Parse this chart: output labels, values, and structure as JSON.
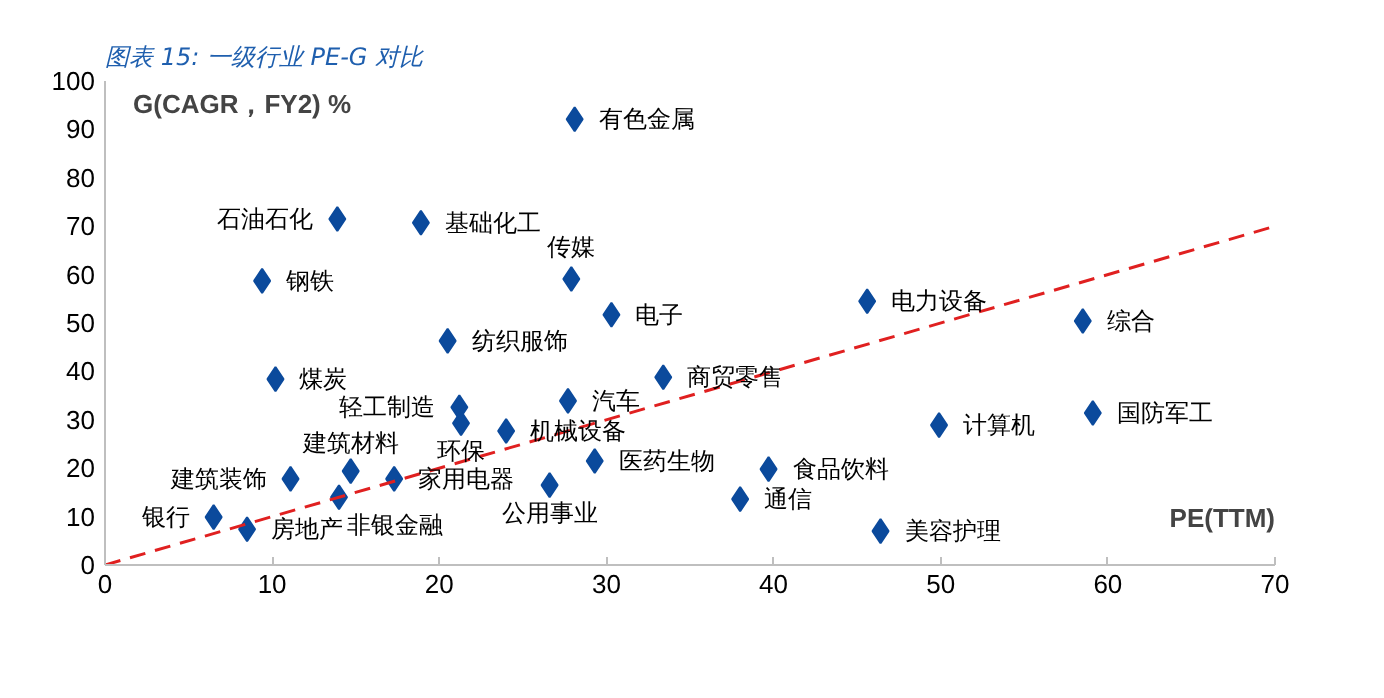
{
  "chart_data": {
    "type": "scatter",
    "title": "图表 15: 一级行业 PE-G 对比",
    "xlabel": "PE(TTM)",
    "ylabel": "G(CAGR，FY2) %",
    "xlim": [
      0,
      70
    ],
    "ylim": [
      0,
      100
    ],
    "xticks": [
      0,
      10,
      20,
      30,
      40,
      50,
      60,
      70
    ],
    "yticks": [
      0,
      10,
      20,
      30,
      40,
      50,
      60,
      70,
      80,
      90,
      100
    ],
    "grid": false,
    "marker": "diamond",
    "series": [
      {
        "type": "scatter",
        "color": "#0b4a9c",
        "x": [
          28.1,
          13.9,
          18.9,
          27.9,
          9.4,
          30.3,
          20.5,
          45.6,
          58.5,
          10.2,
          33.4,
          21.2,
          21.3,
          27.7,
          24.0,
          29.3,
          49.9,
          59.1,
          39.7,
          38.0,
          46.4,
          11.1,
          14.7,
          14.0,
          17.3,
          26.6,
          6.5,
          8.5
        ],
        "values": [
          92.1,
          71.5,
          70.7,
          59.1,
          58.7,
          51.7,
          46.3,
          54.5,
          50.4,
          38.4,
          38.8,
          32.6,
          29.3,
          33.9,
          27.7,
          21.5,
          28.9,
          31.4,
          19.8,
          13.6,
          7.0,
          17.8,
          19.4,
          14.0,
          17.8,
          16.5,
          9.9,
          7.4
        ]
      },
      {
        "type": "line",
        "color": "#e02020",
        "line_style": "dashed",
        "marker": "none",
        "x": [
          0,
          70
        ],
        "values": [
          0,
          70
        ]
      }
    ],
    "annotations": [
      {
        "text": "有色金属",
        "x": 28.1,
        "y": 92.1
      },
      {
        "text": "石油石化",
        "x": 13.9,
        "y": 71.5
      },
      {
        "text": "基础化工",
        "x": 18.9,
        "y": 70.7
      },
      {
        "text": "传媒",
        "x": 27.9,
        "y": 59.1
      },
      {
        "text": "钢铁",
        "x": 9.4,
        "y": 58.7
      },
      {
        "text": "电子",
        "x": 30.3,
        "y": 51.7
      },
      {
        "text": "纺织服饰",
        "x": 20.5,
        "y": 46.3
      },
      {
        "text": "电力设备",
        "x": 45.6,
        "y": 54.5
      },
      {
        "text": "综合",
        "x": 58.5,
        "y": 50.4
      },
      {
        "text": "煤炭",
        "x": 10.2,
        "y": 38.4
      },
      {
        "text": "商贸零售",
        "x": 33.4,
        "y": 38.8
      },
      {
        "text": "轻工制造",
        "x": 21.2,
        "y": 32.6
      },
      {
        "text": "环保",
        "x": 21.3,
        "y": 29.3
      },
      {
        "text": "汽车",
        "x": 27.7,
        "y": 33.9
      },
      {
        "text": "机械设备",
        "x": 24.0,
        "y": 27.7
      },
      {
        "text": "医药生物",
        "x": 29.3,
        "y": 21.5
      },
      {
        "text": "计算机",
        "x": 49.9,
        "y": 28.9
      },
      {
        "text": "国防军工",
        "x": 59.1,
        "y": 31.4
      },
      {
        "text": "食品饮料",
        "x": 39.7,
        "y": 19.8
      },
      {
        "text": "通信",
        "x": 38.0,
        "y": 13.6
      },
      {
        "text": "美容护理",
        "x": 46.4,
        "y": 7.0
      },
      {
        "text": "建筑装饰",
        "x": 11.1,
        "y": 17.8
      },
      {
        "text": "建筑材料",
        "x": 14.7,
        "y": 19.4
      },
      {
        "text": "非银金融",
        "x": 14.0,
        "y": 14.0
      },
      {
        "text": "家用电器",
        "x": 17.3,
        "y": 17.8
      },
      {
        "text": "公用事业",
        "x": 26.6,
        "y": 16.5
      },
      {
        "text": "银行",
        "x": 6.5,
        "y": 9.9
      },
      {
        "text": "房地产",
        "x": 8.5,
        "y": 7.4
      }
    ]
  }
}
